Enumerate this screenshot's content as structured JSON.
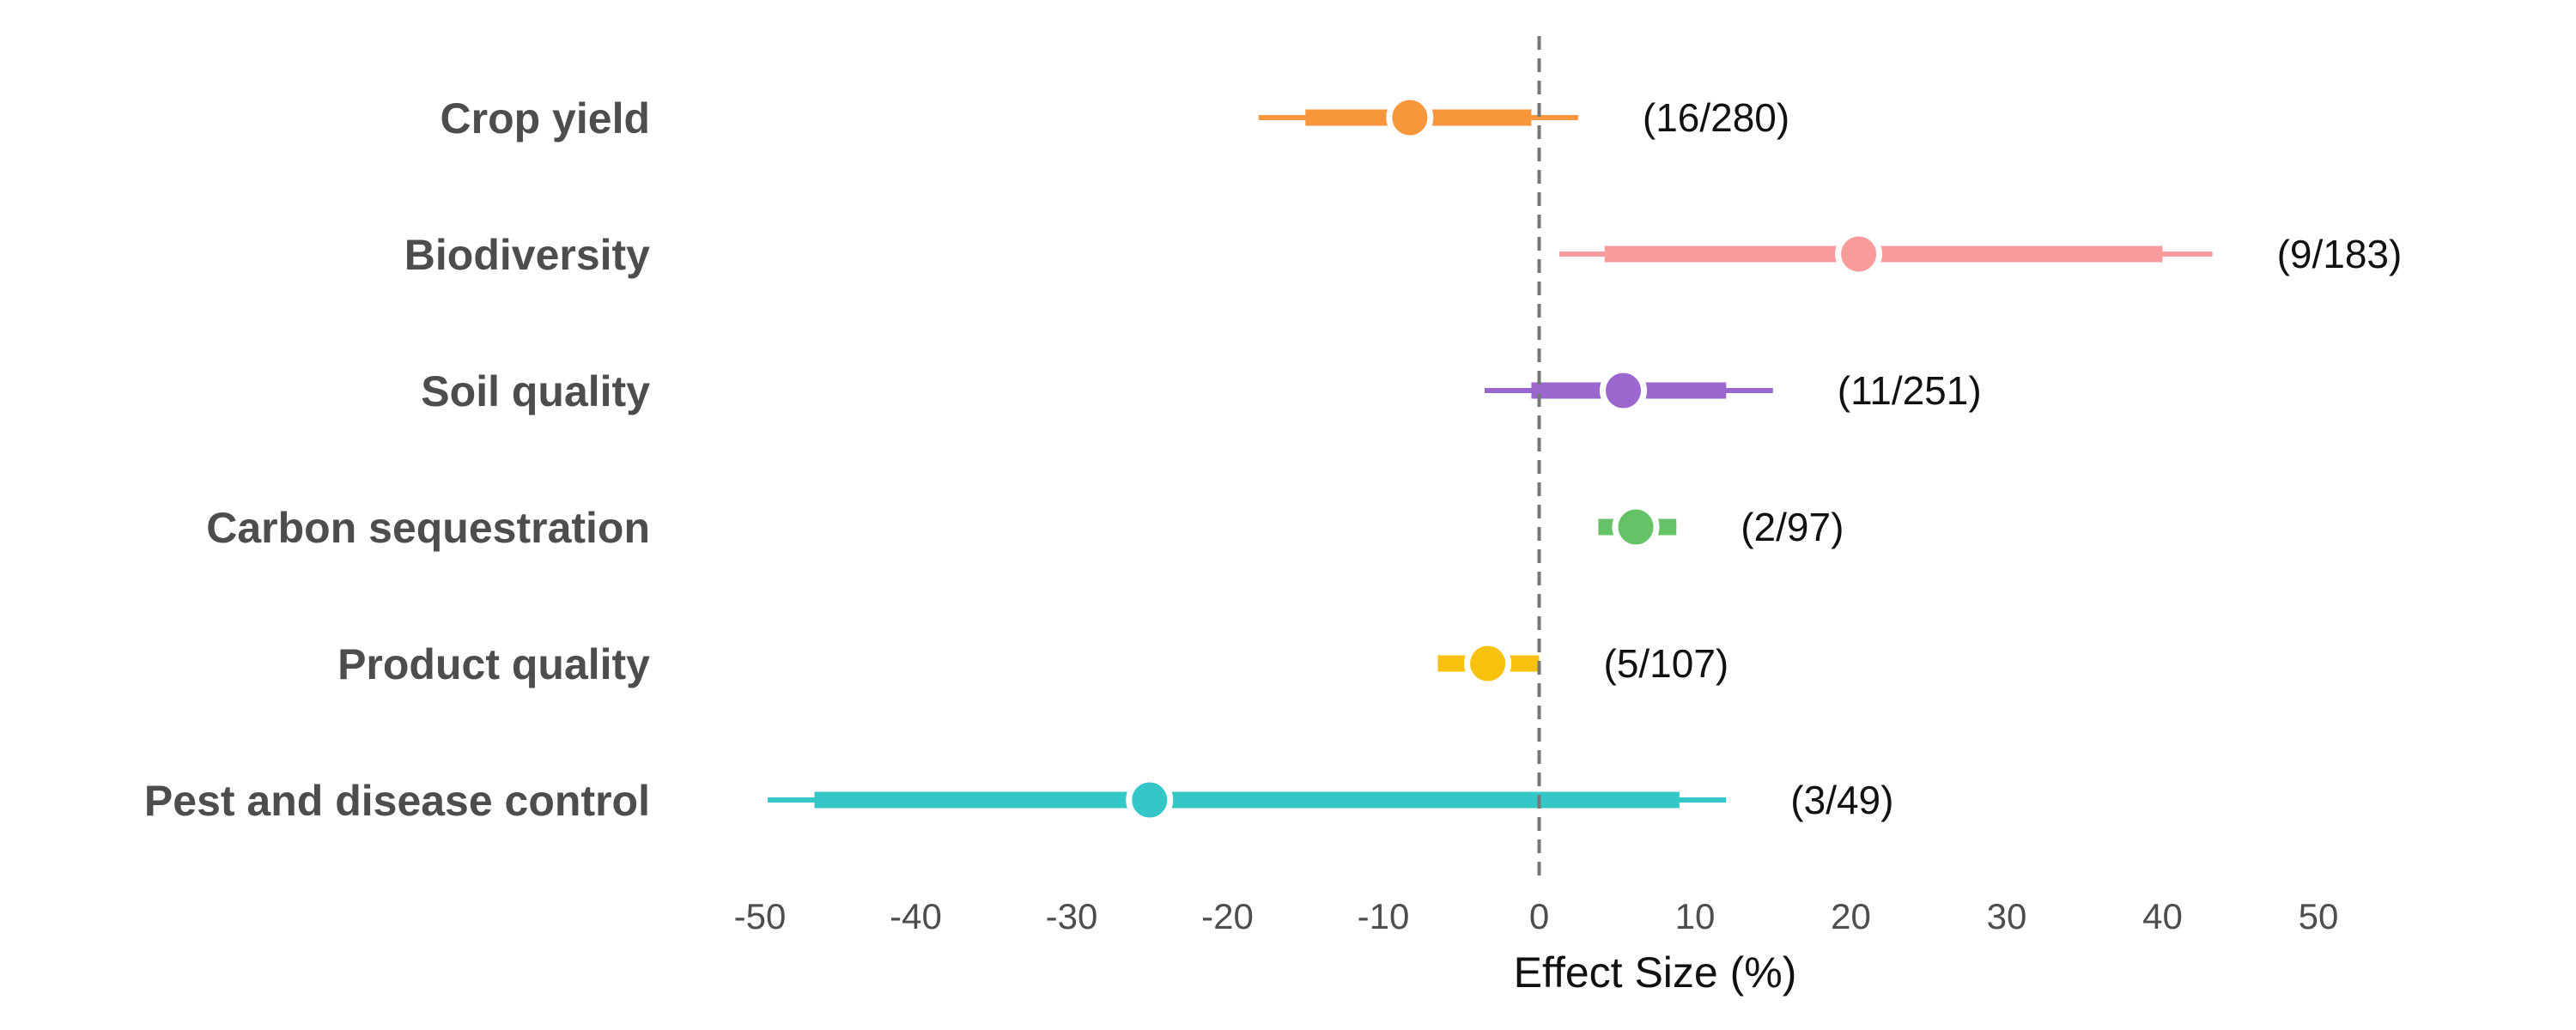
{
  "chart_data": {
    "type": "forest",
    "xlabel": "Effect Size (%)",
    "xlim": [
      -50,
      50
    ],
    "xticks": [
      -50,
      -40,
      -30,
      -20,
      -10,
      0,
      10,
      20,
      30,
      40,
      50
    ],
    "reference_line": 0,
    "grid": false,
    "rows": [
      {
        "label": "Crop yield",
        "estimate": -8.3,
        "inner": [
          -15.0,
          -0.5
        ],
        "outer": [
          -18.0,
          2.5
        ],
        "count": "(16/280)",
        "color": "#F7963B"
      },
      {
        "label": "Biodiversity",
        "estimate": 20.5,
        "inner": [
          4.2,
          40.0
        ],
        "outer": [
          1.3,
          43.2
        ],
        "count": "(9/183)",
        "color": "#F99B9B"
      },
      {
        "label": "Soil quality",
        "estimate": 5.4,
        "inner": [
          -0.5,
          12.0
        ],
        "outer": [
          -3.5,
          15.0
        ],
        "count": "(11/251)",
        "color": "#9B67CF"
      },
      {
        "label": "Carbon sequestration",
        "estimate": 6.2,
        "inner": [
          3.8,
          8.8
        ],
        "outer": [
          3.8,
          8.8
        ],
        "count": "(2/97)",
        "color": "#66C266"
      },
      {
        "label": "Product quality",
        "estimate": -3.3,
        "inner": [
          -6.5,
          0.0
        ],
        "outer": [
          -6.5,
          0.0
        ],
        "count": "(5/107)",
        "color": "#F8C10B"
      },
      {
        "label": "Pest and disease control",
        "estimate": -25.0,
        "inner": [
          -46.5,
          9.0
        ],
        "outer": [
          -49.5,
          12.0
        ],
        "count": "(3/49)",
        "color": "#33C7C7"
      }
    ]
  }
}
